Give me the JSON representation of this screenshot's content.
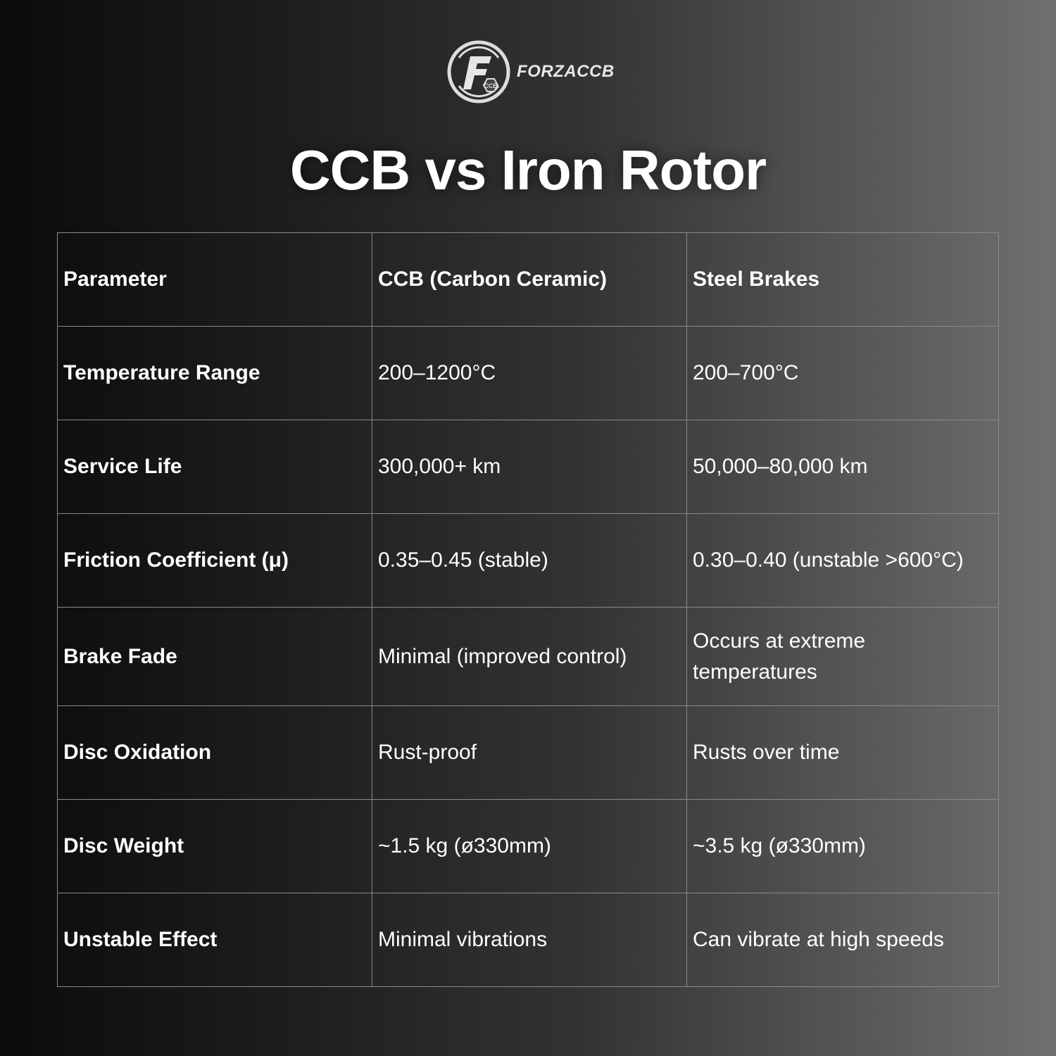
{
  "brand": {
    "name": "FORZACCB",
    "logo_letters": "F",
    "logo_badge": "CCB"
  },
  "title": "CCB vs Iron Rotor",
  "table": {
    "headers": [
      "Parameter",
      "CCB (Carbon Ceramic)",
      "Steel Brakes"
    ],
    "rows": [
      [
        "Temperature Range",
        "200–1200°C",
        "200–700°C"
      ],
      [
        "Service Life",
        "300,000+ km",
        "50,000–80,000 km"
      ],
      [
        "Friction Coefficient (μ)",
        "0.35–0.45 (stable)",
        "0.30–0.40 (unstable >600°C)"
      ],
      [
        "Brake Fade",
        "Minimal (improved control)",
        "Occurs at extreme temperatures"
      ],
      [
        "Disc Oxidation",
        "Rust-proof",
        "Rusts over time"
      ],
      [
        "Disc Weight",
        "~1.5 kg (ø330mm)",
        "~3.5 kg (ø330mm)"
      ],
      [
        "Unstable Effect",
        "Minimal vibrations",
        "Can vibrate at high speeds"
      ]
    ]
  }
}
